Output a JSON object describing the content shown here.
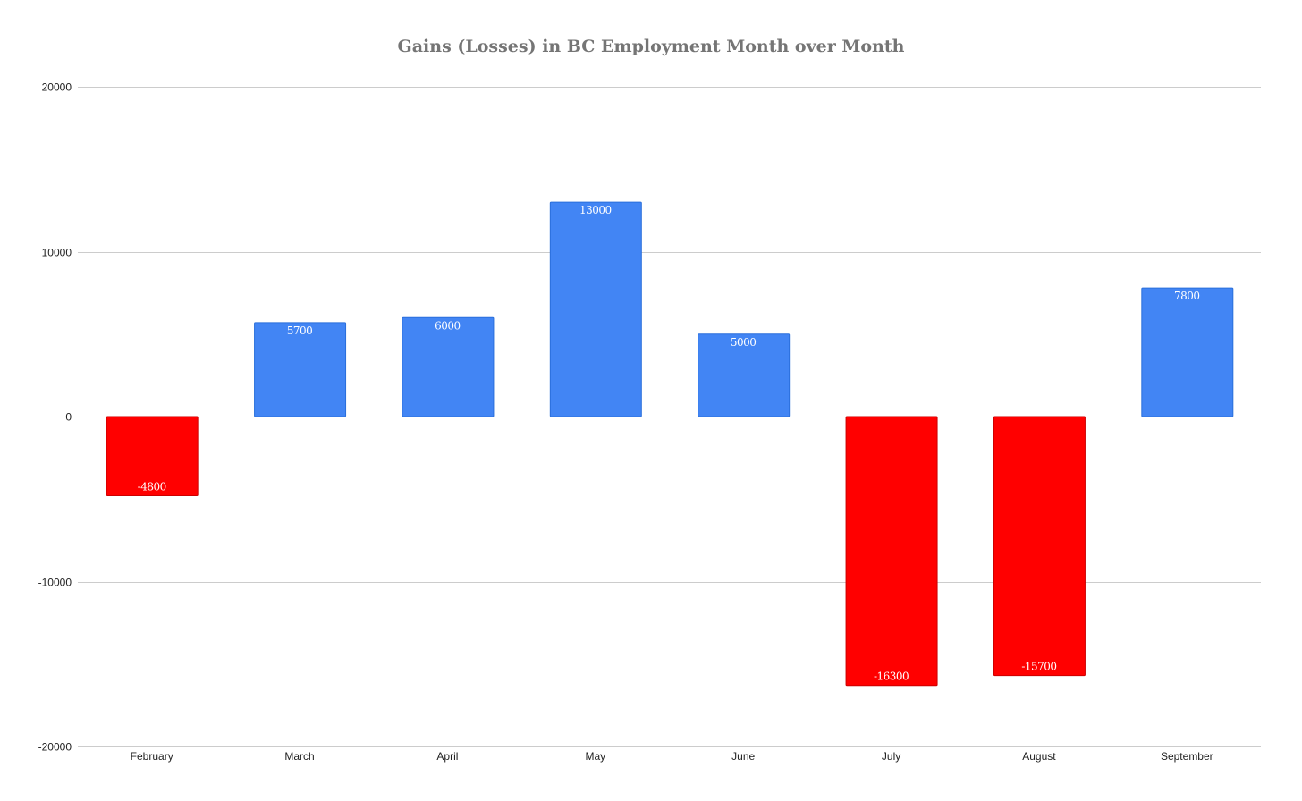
{
  "chart_data": {
    "type": "bar",
    "title": "Gains (Losses) in BC Employment Month over Month",
    "xlabel": "",
    "ylabel": "",
    "categories": [
      "February",
      "March",
      "April",
      "May",
      "June",
      "July",
      "August",
      "September"
    ],
    "values": [
      -4800,
      5700,
      6000,
      13000,
      5000,
      -16300,
      -15700,
      7800
    ],
    "data_labels": [
      "-4800",
      "5700",
      "6000",
      "13000",
      "5000",
      "-16300",
      "-15700",
      "7800"
    ],
    "ylim": [
      -20000,
      20000
    ],
    "yticks": [
      20000,
      10000,
      0,
      -10000,
      -20000
    ],
    "ytick_labels": [
      "20000",
      "10000",
      "0",
      "-10000",
      "-20000"
    ],
    "grid": true,
    "legend": "none",
    "colors": {
      "positive": "#4285f4",
      "positive_border": "#2a6fdb",
      "negative": "#ff0000",
      "negative_border": "#cc0000"
    }
  }
}
